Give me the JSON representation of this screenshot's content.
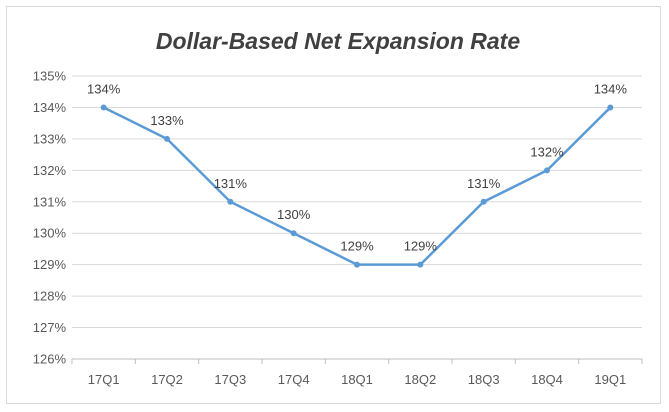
{
  "chart_data": {
    "type": "line",
    "title": "Dollar-Based Net Expansion Rate",
    "xlabel": "",
    "ylabel": "",
    "categories": [
      "17Q1",
      "17Q2",
      "17Q3",
      "17Q4",
      "18Q1",
      "18Q2",
      "18Q3",
      "18Q4",
      "19Q1"
    ],
    "series": [
      {
        "values": [
          134,
          133,
          131,
          130,
          129,
          129,
          131,
          132,
          134
        ]
      }
    ],
    "data_labels": [
      "134%",
      "133%",
      "131%",
      "130%",
      "129%",
      "129%",
      "131%",
      "132%",
      "134%"
    ],
    "ylim": [
      126,
      135
    ],
    "yticks": [
      126,
      127,
      128,
      129,
      130,
      131,
      132,
      133,
      134,
      135
    ],
    "ytick_labels": [
      "126%",
      "127%",
      "128%",
      "129%",
      "130%",
      "131%",
      "132%",
      "133%",
      "134%",
      "135%"
    ],
    "grid": true,
    "legend": "none",
    "colors": {
      "line": "#5b9bd5"
    }
  }
}
